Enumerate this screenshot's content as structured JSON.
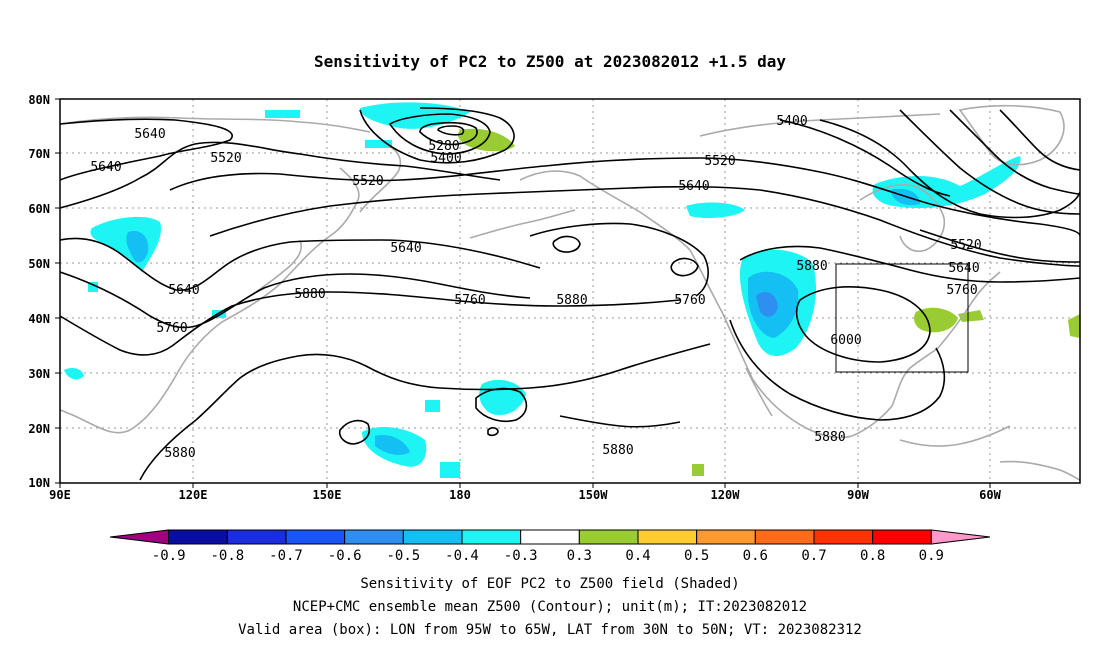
{
  "title": "Sensitivity of PC2 to Z500 at 2023082012 +1.5 day",
  "map": {
    "lat_ticks": [
      "80N",
      "70N",
      "60N",
      "50N",
      "40N",
      "30N",
      "20N",
      "10N"
    ],
    "lon_ticks": [
      "90E",
      "120E",
      "150E",
      "180",
      "150W",
      "120W",
      "90W",
      "60W"
    ],
    "contour_labels": [
      {
        "id": "c1",
        "text": "5640"
      },
      {
        "id": "c2",
        "text": "5640"
      },
      {
        "id": "c3",
        "text": "5520"
      },
      {
        "id": "c4",
        "text": "5520"
      },
      {
        "id": "c5",
        "text": "5280"
      },
      {
        "id": "c6",
        "text": "5400"
      },
      {
        "id": "c7",
        "text": "5400"
      },
      {
        "id": "c8",
        "text": "5520"
      },
      {
        "id": "c9",
        "text": "5640"
      },
      {
        "id": "c10",
        "text": "5640"
      },
      {
        "id": "c11",
        "text": "5640"
      },
      {
        "id": "c12",
        "text": "5880"
      },
      {
        "id": "c13",
        "text": "5760"
      },
      {
        "id": "c14",
        "text": "5760"
      },
      {
        "id": "c15",
        "text": "5880"
      },
      {
        "id": "c16",
        "text": "5760"
      },
      {
        "id": "c17",
        "text": "5880"
      },
      {
        "id": "c18",
        "text": "5520"
      },
      {
        "id": "c19",
        "text": "5640"
      },
      {
        "id": "c20",
        "text": "5760"
      },
      {
        "id": "c21",
        "text": "6000"
      },
      {
        "id": "c22",
        "text": "5880"
      },
      {
        "id": "c23",
        "text": "5880"
      },
      {
        "id": "c24",
        "text": "5880"
      }
    ]
  },
  "colorbar": {
    "colors": [
      "#a0007f",
      "#0a0ea0",
      "#1a2ee0",
      "#1a55f5",
      "#2f8ff0",
      "#14c0f3",
      "#1ef4f4",
      "#ffffff",
      "#99cc33",
      "#ffcc33",
      "#ff9933",
      "#ff6b1a",
      "#ff3300",
      "#ff0000",
      "#ff99cc"
    ],
    "labels": [
      "-0.9",
      "-0.8",
      "-0.7",
      "-0.6",
      "-0.5",
      "-0.4",
      "-0.3",
      "0.3",
      "0.4",
      "0.5",
      "0.6",
      "0.7",
      "0.8",
      "0.9"
    ]
  },
  "captions": {
    "line1": "Sensitivity of EOF PC2 to Z500 field (Shaded)",
    "line2": "NCEP+CMC ensemble mean Z500 (Contour); unit(m); IT:2023082012",
    "line3": "Valid area (box): LON from 95W to 65W, LAT from 30N to 50N; VT: 2023082312"
  }
}
